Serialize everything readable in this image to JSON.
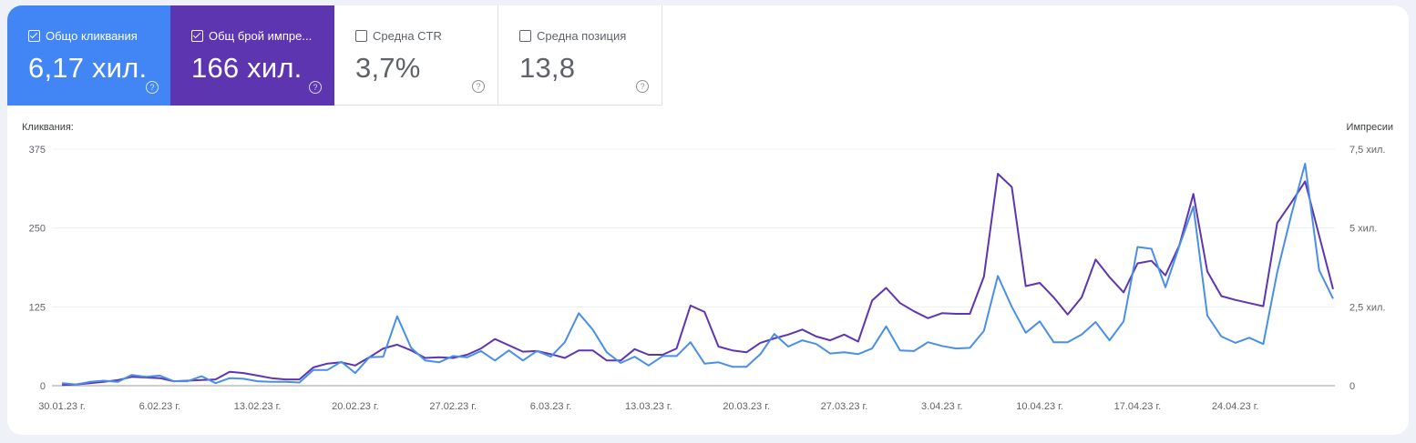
{
  "tiles": [
    {
      "label": "Общо кликвания",
      "value": "6,17 хил.",
      "checked": true,
      "color": "#4285f4"
    },
    {
      "label": "Общ брой импре...",
      "value": "166 хил.",
      "checked": true,
      "color": "#5e35b1"
    },
    {
      "label": "Средна CTR",
      "value": "3,7%",
      "checked": false
    },
    {
      "label": "Средна позиция",
      "value": "13,8",
      "checked": false
    }
  ],
  "help_glyph": "?",
  "chart_data": {
    "type": "line",
    "ylabel_left": "Кликвания:",
    "ylabel_right": "Импресии",
    "y_left_ticks": [
      "0",
      "125",
      "250",
      "375"
    ],
    "y_left_range": [
      0,
      375
    ],
    "y_right_ticks": [
      "0",
      "2,5 хил.",
      "5 хил.",
      "7,5 хил."
    ],
    "y_right_range": [
      0,
      7500
    ],
    "x_ticks": [
      "30.01.23 г.",
      "6.02.23 г.",
      "13.02.23 г.",
      "20.02.23 г.",
      "27.02.23 г.",
      "6.03.23 г.",
      "13.03.23 г.",
      "20.03.23 г.",
      "27.03.23 г.",
      "3.04.23 г.",
      "10.04.23 г.",
      "17.04.23 г.",
      "24.04.23 г."
    ],
    "grid": true,
    "series": [
      {
        "name": "Общо кликвания",
        "axis": "left",
        "color": "#4a8fe7",
        "values": [
          4,
          2,
          6,
          8,
          6,
          17,
          14,
          16,
          7,
          7,
          15,
          4,
          12,
          11,
          7,
          6,
          6,
          5,
          25,
          25,
          38,
          20,
          45,
          46,
          110,
          60,
          40,
          37,
          47,
          45,
          55,
          40,
          56,
          40,
          55,
          46,
          69,
          115,
          89,
          53,
          36,
          46,
          32,
          47,
          47,
          69,
          35,
          37,
          30,
          30,
          50,
          82,
          62,
          72,
          66,
          51,
          53,
          50,
          59,
          94,
          56,
          55,
          69,
          63,
          59,
          60,
          87,
          174,
          125,
          84,
          102,
          69,
          69,
          81,
          101,
          72,
          102,
          220,
          217,
          156,
          222,
          284,
          111,
          78,
          68,
          76,
          66,
          180,
          270,
          352,
          183,
          138
        ]
      },
      {
        "name": "Общ брой импресии",
        "axis": "right",
        "color": "#5e35b1",
        "values": [
          20,
          40,
          80,
          120,
          180,
          280,
          260,
          240,
          140,
          160,
          180,
          200,
          440,
          400,
          320,
          240,
          200,
          200,
          580,
          700,
          740,
          640,
          900,
          1180,
          1300,
          1120,
          880,
          900,
          880,
          980,
          1180,
          1480,
          1280,
          1080,
          1100,
          1000,
          880,
          1120,
          1120,
          800,
          800,
          1160,
          980,
          980,
          1180,
          2540,
          2340,
          1240,
          1120,
          1060,
          1360,
          1500,
          1620,
          1780,
          1560,
          1440,
          1620,
          1400,
          2700,
          3100,
          2620,
          2360,
          2140,
          2300,
          2280,
          2280,
          3460,
          6720,
          6300,
          3160,
          3260,
          2800,
          2260,
          2800,
          4000,
          3440,
          2960,
          3880,
          3960,
          3500,
          4460,
          6080,
          3620,
          2840,
          2720,
          2620,
          2520,
          5160,
          5800,
          6480,
          4760,
          3060
        ]
      }
    ]
  }
}
